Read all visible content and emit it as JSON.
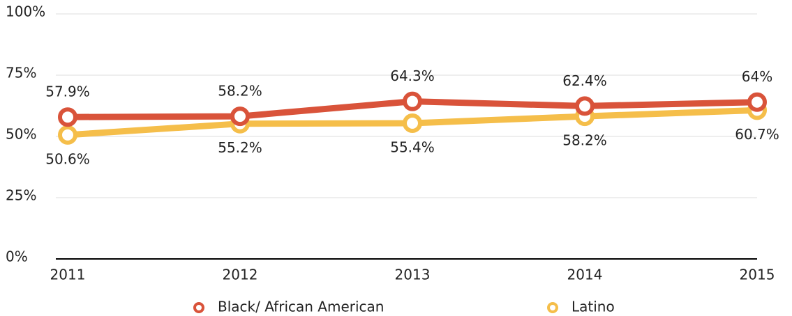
{
  "chart_data": {
    "type": "line",
    "categories": [
      "2011",
      "2012",
      "2013",
      "2014",
      "2015"
    ],
    "series": [
      {
        "name": "Black/ African American",
        "color": "#d9533a",
        "values": [
          57.9,
          58.2,
          64.3,
          62.4,
          64
        ],
        "value_labels": [
          "57.9%",
          "58.2%",
          "64.3%",
          "62.4%",
          "64%"
        ]
      },
      {
        "name": "Latino",
        "color": "#f5be4a",
        "values": [
          50.6,
          55.2,
          55.4,
          58.2,
          60.7
        ],
        "value_labels": [
          "50.6%",
          "55.2%",
          "55.4%",
          "58.2%",
          "60.7%"
        ]
      }
    ],
    "ylim": [
      0,
      100
    ],
    "yticks": [
      {
        "value": 0,
        "label": "0%"
      },
      {
        "value": 25,
        "label": "25%"
      },
      {
        "value": 50,
        "label": "50%"
      },
      {
        "value": 75,
        "label": "75%"
      },
      {
        "value": 100,
        "label": "100%"
      }
    ],
    "grid": true
  }
}
